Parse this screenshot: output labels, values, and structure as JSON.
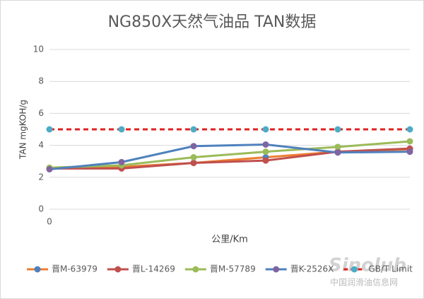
{
  "chart_data": {
    "type": "line",
    "title": "NG850X天然气油品 TAN数据",
    "x_label": "公里/Km",
    "y_label": "TAN mgKOH/g",
    "categories": [
      "0",
      null,
      null,
      null,
      null,
      null
    ],
    "ylim": [
      0,
      10
    ],
    "yticks": [
      0,
      2,
      4,
      6,
      8,
      10
    ],
    "grid": true,
    "legend": "bottom",
    "series": [
      {
        "name": "晋M-63979",
        "color": "#ed7d31",
        "marker_color": "#4f81bd",
        "values": [
          2.55,
          2.65,
          2.9,
          3.25,
          3.6,
          3.75
        ]
      },
      {
        "name": "晋L-14269",
        "color": "#c0504d",
        "marker_color": "#c0504d",
        "values": [
          2.55,
          2.55,
          2.9,
          3.05,
          3.6,
          3.8
        ]
      },
      {
        "name": "晋M-57789",
        "color": "#9bbb59",
        "marker_color": "#9bbb59",
        "values": [
          2.6,
          2.75,
          3.25,
          3.6,
          3.9,
          4.25
        ]
      },
      {
        "name": "晋K-2526X",
        "color": "#4f81bd",
        "marker_color": "#8064a2",
        "values": [
          2.5,
          2.95,
          3.95,
          4.05,
          3.55,
          3.6
        ]
      },
      {
        "name": "GB/T Limit",
        "color": "#e02020",
        "marker_color": "#4bacc6",
        "dashed": true,
        "values": [
          5,
          5,
          5,
          5,
          5,
          5
        ]
      }
    ]
  },
  "watermark": {
    "logo": "Sinolub",
    "text": "中国润滑油信息网"
  }
}
